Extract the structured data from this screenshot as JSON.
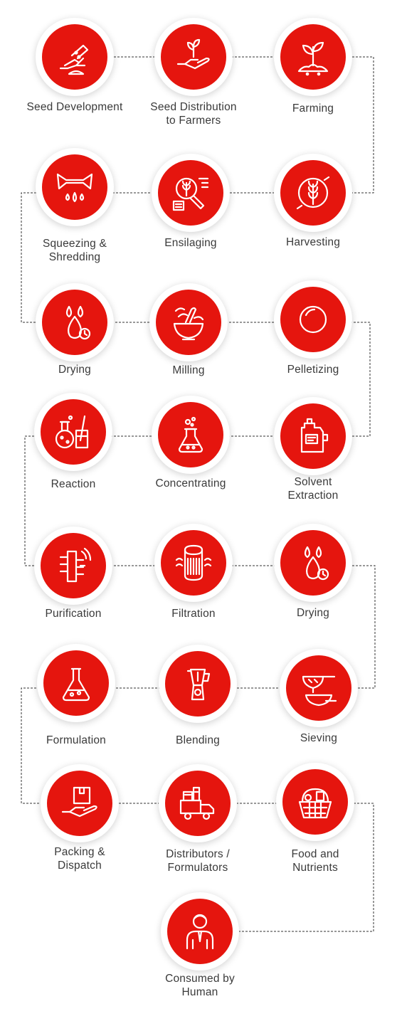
{
  "steps": [
    {
      "label": "Seed Development",
      "icon": "hand-sowing-seeds-icon"
    },
    {
      "label": "Seed Distribution\nto Farmers",
      "icon": "hand-holding-sprout-icon"
    },
    {
      "label": "Farming",
      "icon": "sprout-in-soil-icon"
    },
    {
      "label": "Harvesting",
      "icon": "wheat-circle-icon"
    },
    {
      "label": "Ensilaging",
      "icon": "grain-analysis-icon"
    },
    {
      "label": "Squeezing &\nShredding",
      "icon": "squeeze-drops-icon"
    },
    {
      "label": "Drying",
      "icon": "drops-timer-icon"
    },
    {
      "label": "Milling",
      "icon": "mortar-pestle-icon"
    },
    {
      "label": "Pelletizing",
      "icon": "pellet-circle-icon"
    },
    {
      "label": "Solvent\nExtraction",
      "icon": "solvent-canister-icon"
    },
    {
      "label": "Concentrating",
      "icon": "flask-bubbles-icon"
    },
    {
      "label": "Reaction",
      "icon": "lab-glassware-icon"
    },
    {
      "label": "Purification",
      "icon": "purification-signal-icon"
    },
    {
      "label": "Filtration",
      "icon": "filter-cartridge-icon"
    },
    {
      "label": "Drying",
      "icon": "drops-timer-icon"
    },
    {
      "label": "Sieving",
      "icon": "sieve-bowl-icon"
    },
    {
      "label": "Blending",
      "icon": "blender-icon"
    },
    {
      "label": "Formulation",
      "icon": "formulation-flask-icon"
    },
    {
      "label": "Packing &\nDispatch",
      "icon": "hand-box-icon"
    },
    {
      "label": "Distributors /\nFormulators",
      "icon": "delivery-truck-icon"
    },
    {
      "label": "Food and\nNutrients",
      "icon": "food-basket-icon"
    },
    {
      "label": "Consumed by\nHuman",
      "icon": "person-icon"
    }
  ],
  "colors": {
    "accent": "#e5150e",
    "connector": "#333333",
    "text": "#3a3a3a"
  }
}
